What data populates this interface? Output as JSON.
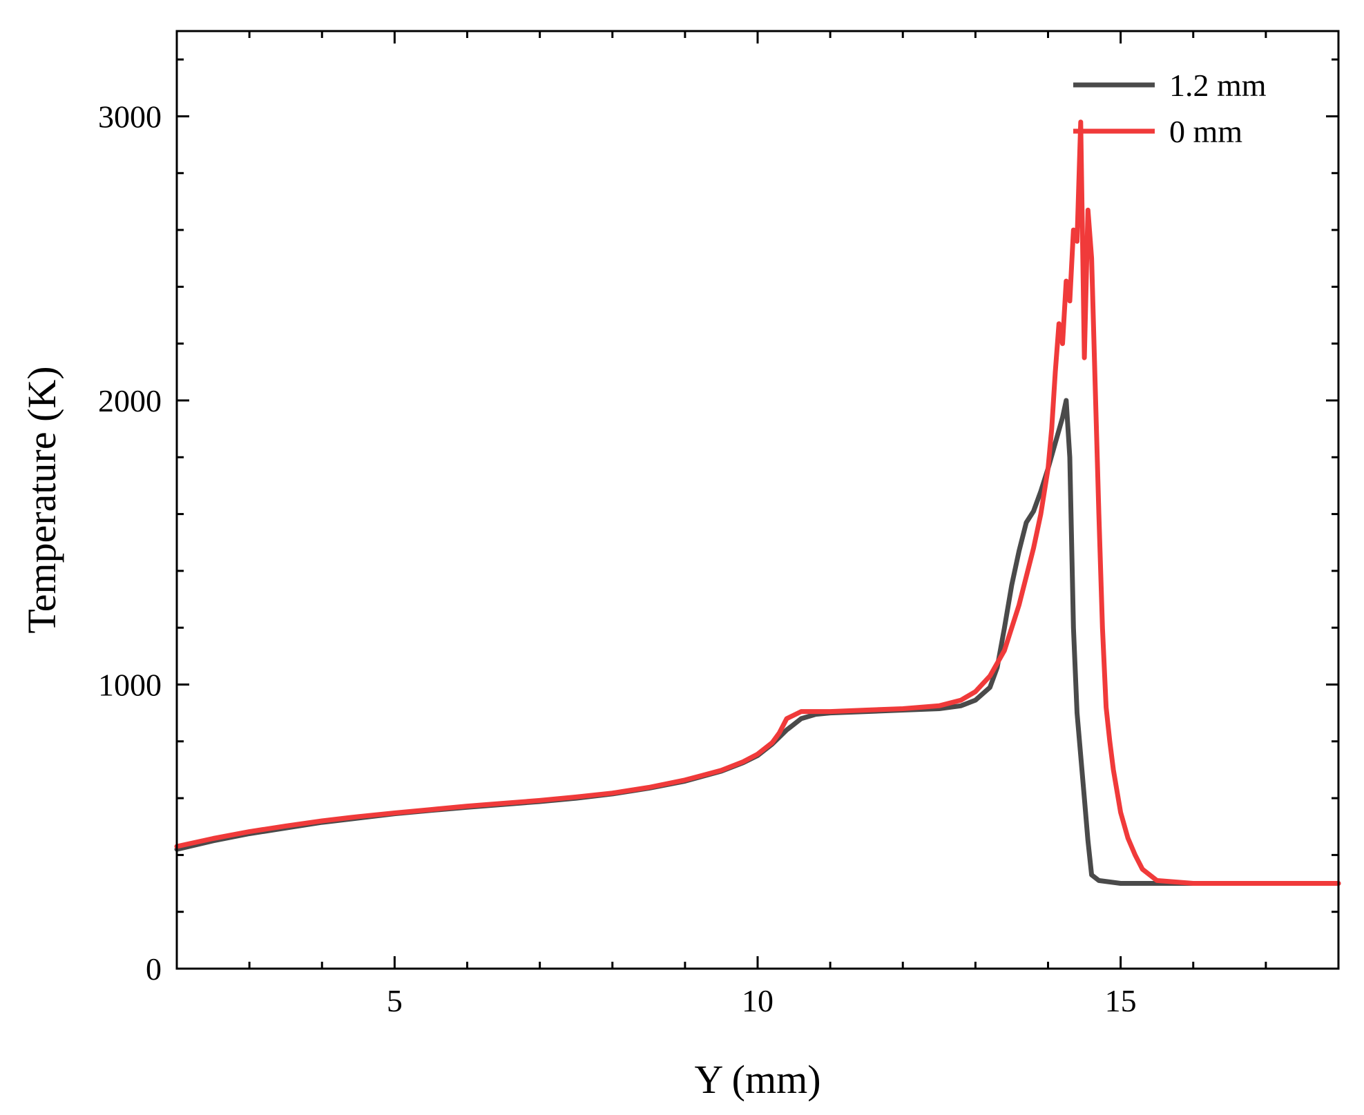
{
  "chart_data": {
    "type": "line",
    "title": "",
    "xlabel": "Y (mm)",
    "ylabel": "Temperature (K)",
    "xlim": [
      2,
      18
    ],
    "ylim": [
      0,
      3300
    ],
    "x_major_ticks": [
      5,
      10,
      15
    ],
    "x_minor_step": 1,
    "y_major_ticks": [
      0,
      1000,
      2000,
      3000
    ],
    "y_minor_step": 200,
    "grid": false,
    "legend_position": "top-right",
    "series": [
      {
        "name": "1.2 mm",
        "color": "#4a4a4a",
        "x": [
          2.0,
          2.5,
          3.0,
          3.5,
          4.0,
          4.5,
          5.0,
          5.5,
          6.0,
          6.5,
          7.0,
          7.5,
          8.0,
          8.5,
          9.0,
          9.5,
          9.8,
          10.0,
          10.2,
          10.4,
          10.6,
          10.8,
          11.0,
          11.5,
          12.0,
          12.5,
          12.8,
          13.0,
          13.2,
          13.3,
          13.4,
          13.5,
          13.6,
          13.7,
          13.8,
          13.9,
          14.0,
          14.1,
          14.2,
          14.25,
          14.3,
          14.35,
          14.4,
          14.5,
          14.55,
          14.6,
          14.7,
          15.0,
          16.0,
          17.0,
          18.0
        ],
        "values": [
          420,
          450,
          475,
          495,
          515,
          530,
          545,
          557,
          568,
          578,
          588,
          600,
          615,
          635,
          660,
          695,
          725,
          750,
          790,
          840,
          880,
          895,
          900,
          905,
          910,
          915,
          925,
          945,
          990,
          1060,
          1200,
          1350,
          1470,
          1570,
          1610,
          1680,
          1760,
          1850,
          1940,
          2000,
          1800,
          1200,
          900,
          600,
          450,
          330,
          310,
          300,
          300,
          300,
          300
        ]
      },
      {
        "name": "0 mm",
        "color": "#f03a3a",
        "x": [
          2.0,
          2.5,
          3.0,
          3.5,
          4.0,
          4.5,
          5.0,
          5.5,
          6.0,
          6.5,
          7.0,
          7.5,
          8.0,
          8.5,
          9.0,
          9.5,
          9.8,
          10.0,
          10.2,
          10.3,
          10.4,
          10.6,
          11.0,
          11.5,
          12.0,
          12.5,
          12.8,
          13.0,
          13.2,
          13.4,
          13.6,
          13.8,
          13.9,
          14.0,
          14.05,
          14.1,
          14.15,
          14.2,
          14.25,
          14.3,
          14.35,
          14.4,
          14.45,
          14.5,
          14.55,
          14.6,
          14.65,
          14.7,
          14.75,
          14.8,
          14.85,
          14.9,
          15.0,
          15.1,
          15.2,
          15.3,
          15.5,
          16.0,
          17.0,
          18.0
        ],
        "values": [
          430,
          458,
          482,
          502,
          520,
          535,
          548,
          560,
          572,
          582,
          592,
          604,
          618,
          638,
          664,
          698,
          728,
          755,
          795,
          830,
          880,
          905,
          905,
          910,
          915,
          925,
          945,
          975,
          1030,
          1120,
          1280,
          1480,
          1600,
          1760,
          1900,
          2100,
          2270,
          2200,
          2420,
          2350,
          2600,
          2560,
          2980,
          2150,
          2670,
          2500,
          2050,
          1600,
          1200,
          920,
          800,
          700,
          550,
          460,
          400,
          350,
          310,
          300,
          300,
          300
        ]
      }
    ]
  }
}
